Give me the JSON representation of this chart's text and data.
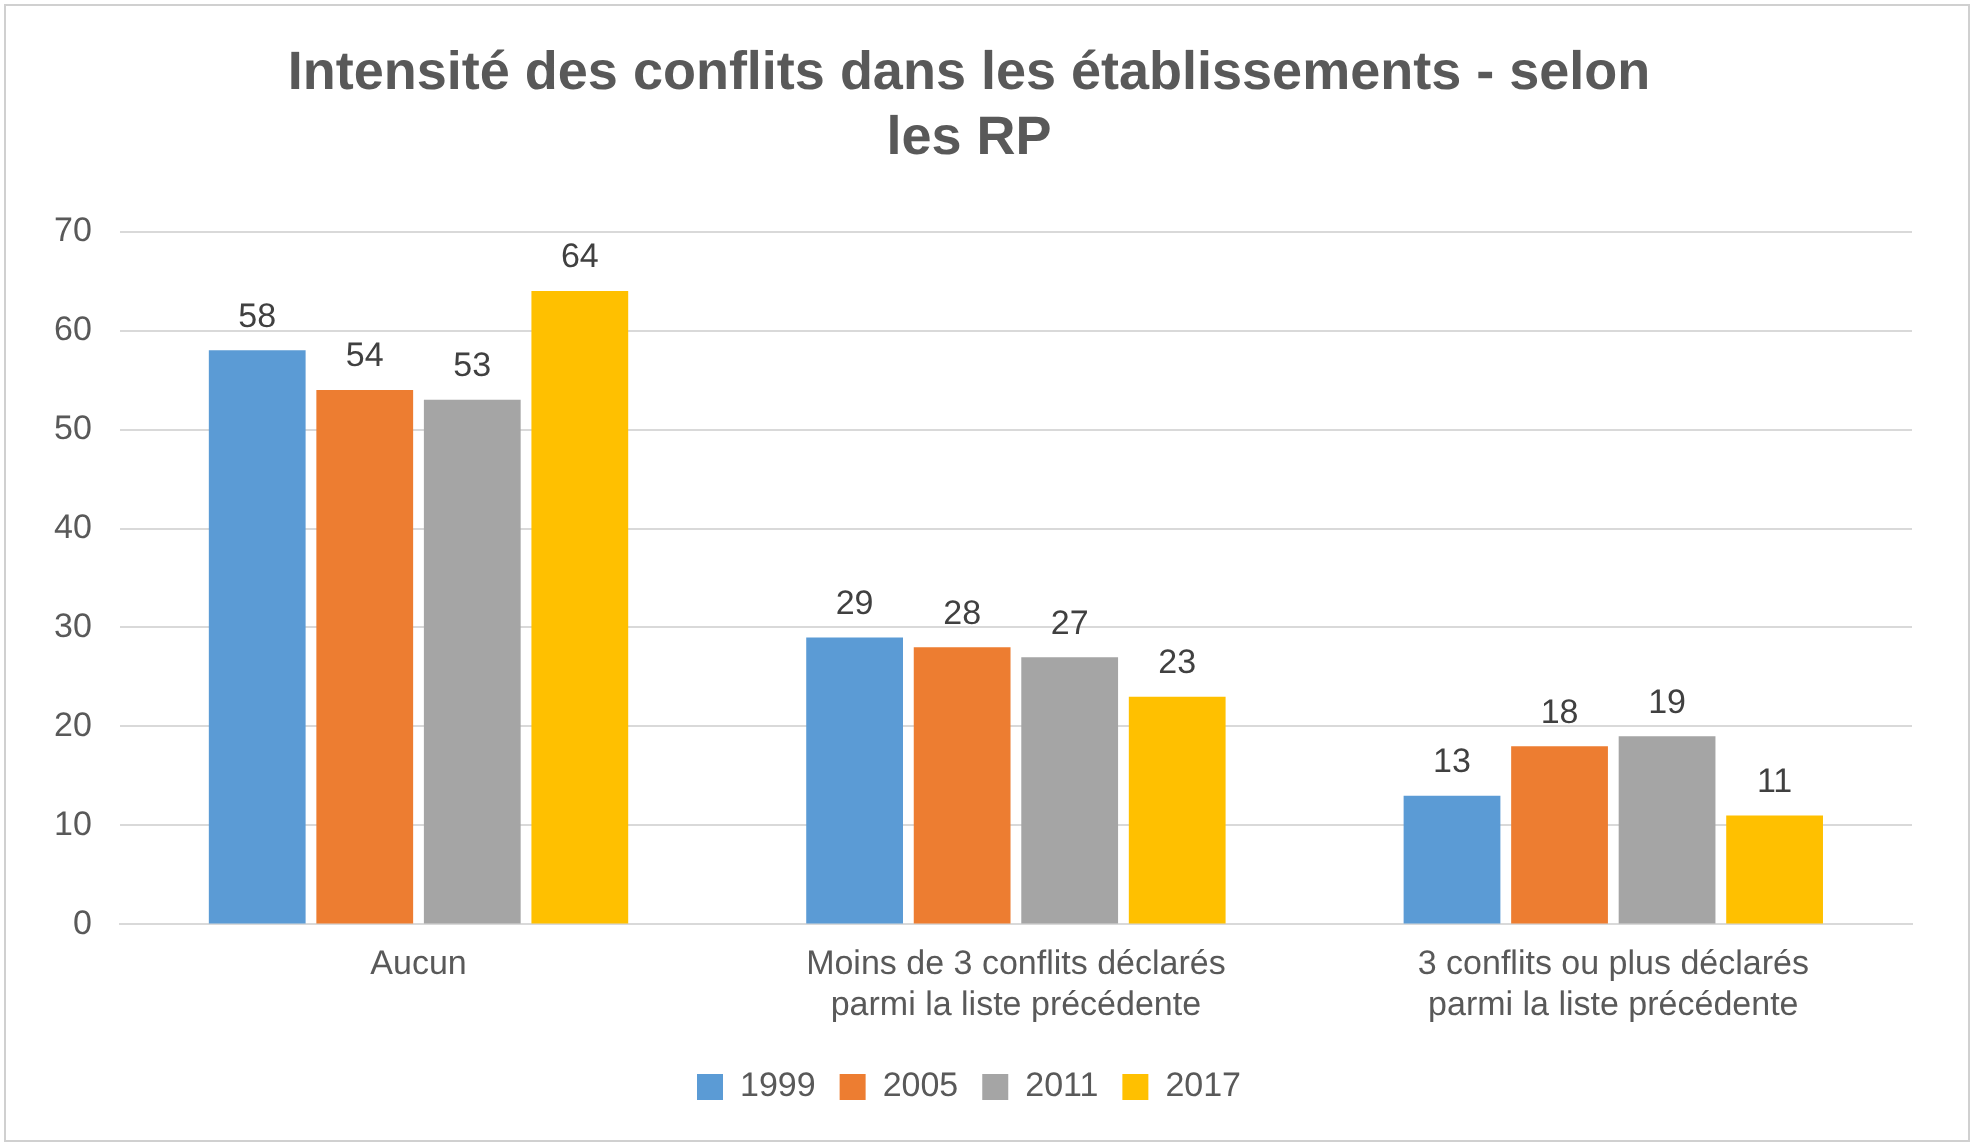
{
  "chart_data": {
    "type": "bar",
    "title": "Intensité des conflits dans les établissements - selon les RP",
    "categories": [
      "Aucun",
      "Moins de 3 conflits déclarés parmi la liste précédente",
      "3 conflits ou plus déclarés parmi la liste précédente"
    ],
    "series": [
      {
        "name": "1999",
        "color": "#5b9bd5",
        "values": [
          58,
          29,
          13
        ]
      },
      {
        "name": "2005",
        "color": "#ed7d31",
        "values": [
          54,
          28,
          18
        ]
      },
      {
        "name": "2011",
        "color": "#a5a5a5",
        "values": [
          53,
          27,
          19
        ]
      },
      {
        "name": "2017",
        "color": "#ffc000",
        "values": [
          64,
          23,
          11
        ]
      }
    ],
    "ylim": [
      0,
      70
    ],
    "yticks": [
      0,
      10,
      20,
      30,
      40,
      50,
      60,
      70
    ],
    "grid": "y",
    "legend": "bottom",
    "data_labels": true
  }
}
